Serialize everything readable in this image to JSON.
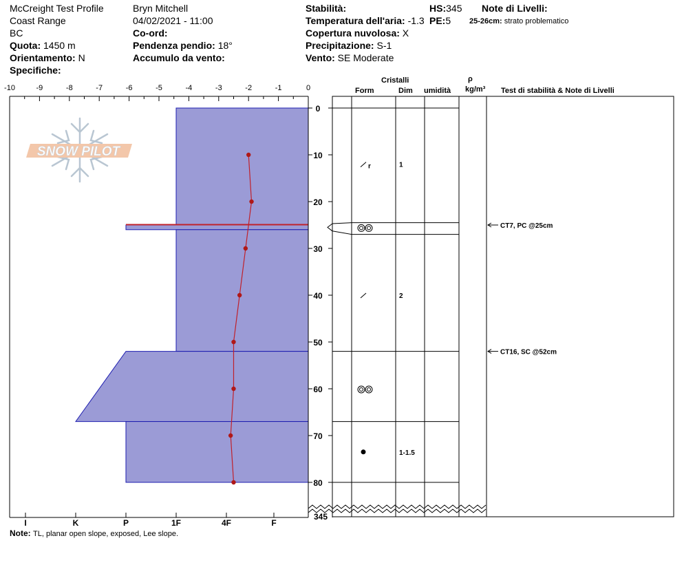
{
  "header": {
    "profile_name": "McCreight Test Profile",
    "range": "Coast Range",
    "region": "BC",
    "quota_label": "Quota:",
    "quota_value": "1450 m",
    "orientamento_label": "Orientamento:",
    "orientamento_value": "N",
    "specifiche_label": "Specifiche:",
    "observer": "Bryn Mitchell",
    "datetime": "04/02/2021 - 11:00",
    "coord_label": "Co-ord:",
    "pendenza_label": "Pendenza pendio:",
    "pendenza_value": "18°",
    "accumulo_label": "Accumulo da vento:",
    "stabilita_label": "Stabilità:",
    "temperatura_label": "Temperatura dell'aria:",
    "temperatura_value": "-1.3",
    "copertura_label": "Copertura nuvolosa:",
    "copertura_value": "X",
    "precipitazione_label": "Precipitazione:",
    "precipitazione_value": "S-1",
    "vento_label": "Vento:",
    "vento_value": "SE Moderate",
    "hs_label": "HS:",
    "hs_value": "345",
    "pe_label": "PE:",
    "pe_value": "5",
    "note_livelli_title": "Note di Livelli:",
    "note_livelli_range": "25-26cm:",
    "note_livelli_text": "strato problematico"
  },
  "logo_text": "SNOW PILOT",
  "chart_data": {
    "type": "snow-profile",
    "temperature_axis": {
      "ticks": [
        "-10",
        "-9",
        "-8",
        "-7",
        "-6",
        "-5",
        "-4",
        "-3",
        "-2",
        "-1",
        "0"
      ],
      "range": [
        -10,
        0
      ]
    },
    "depth_axis": {
      "ticks": [
        "0",
        "10",
        "20",
        "30",
        "40",
        "50",
        "60",
        "70",
        "80"
      ],
      "range": [
        0,
        80
      ],
      "break_label": "345"
    },
    "hardness_axis": {
      "ticks": [
        "I",
        "K",
        "P",
        "1F",
        "4F",
        "F"
      ]
    },
    "temperature_profile": [
      {
        "depth": 10,
        "temp": -2.0
      },
      {
        "depth": 20,
        "temp": -1.9
      },
      {
        "depth": 30,
        "temp": -2.1
      },
      {
        "depth": 40,
        "temp": -2.3
      },
      {
        "depth": 50,
        "temp": -2.5
      },
      {
        "depth": 60,
        "temp": -2.5
      },
      {
        "depth": 70,
        "temp": -2.6
      },
      {
        "depth": 80,
        "temp": -2.5
      }
    ],
    "layers": [
      {
        "top": 0,
        "bottom": 25,
        "hardness": "1F"
      },
      {
        "top": 25,
        "bottom": 26,
        "hardness": "P",
        "problem": true
      },
      {
        "top": 26,
        "bottom": 52,
        "hardness": "1F"
      },
      {
        "top": 52,
        "bottom": 67,
        "hardness": "P to K"
      },
      {
        "top": 67,
        "bottom": 80,
        "hardness": "P"
      }
    ],
    "crystals": [
      {
        "depth": 12,
        "form": "decomposing-rimed",
        "form_sub": "r",
        "size": "1"
      },
      {
        "depth": 25.5,
        "form": "surface-hoar",
        "size": ""
      },
      {
        "depth": 40,
        "form": "decomposing",
        "size": "2"
      },
      {
        "depth": 60,
        "form": "surface-hoar",
        "size": ""
      },
      {
        "depth": 73.5,
        "form": "melt-forms",
        "size": "1-1.5"
      }
    ],
    "stability_tests": [
      {
        "depth": 25,
        "text": "CT7, PC @25cm"
      },
      {
        "depth": 52,
        "text": "CT16, SC @52cm"
      }
    ],
    "columns": {
      "cristalli": "Cristalli",
      "form": "Form",
      "dim": "Dim",
      "umidita": "umidità",
      "rho": "ρ",
      "density_unit": "kg/m³",
      "tests": "Test di stabilità & Note di Livelli"
    }
  },
  "footer": {
    "note_label": "Note:",
    "note_text": "TL, planar open slope, exposed, Lee slope."
  }
}
